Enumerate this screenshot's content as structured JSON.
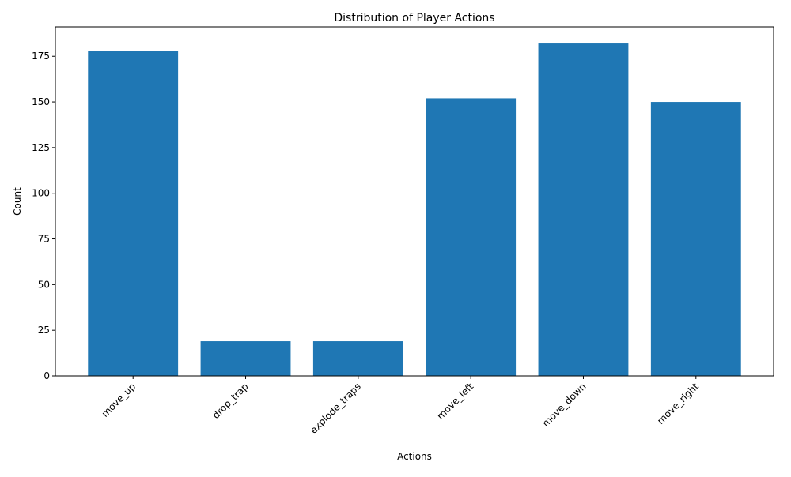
{
  "chart_data": {
    "type": "bar",
    "title": "Distribution of Player Actions",
    "xlabel": "Actions",
    "ylabel": "Count",
    "categories": [
      "move_up",
      "drop_trap",
      "explode_traps",
      "move_left",
      "move_down",
      "move_right"
    ],
    "values": [
      178,
      19,
      19,
      152,
      182,
      150
    ],
    "ylim": [
      0,
      191.1
    ],
    "yticks": [
      0,
      25,
      50,
      75,
      100,
      125,
      150,
      175
    ],
    "xtick_rotation_deg": 45,
    "grid": false,
    "legend": "none",
    "bar_color": "#1f77b4"
  }
}
